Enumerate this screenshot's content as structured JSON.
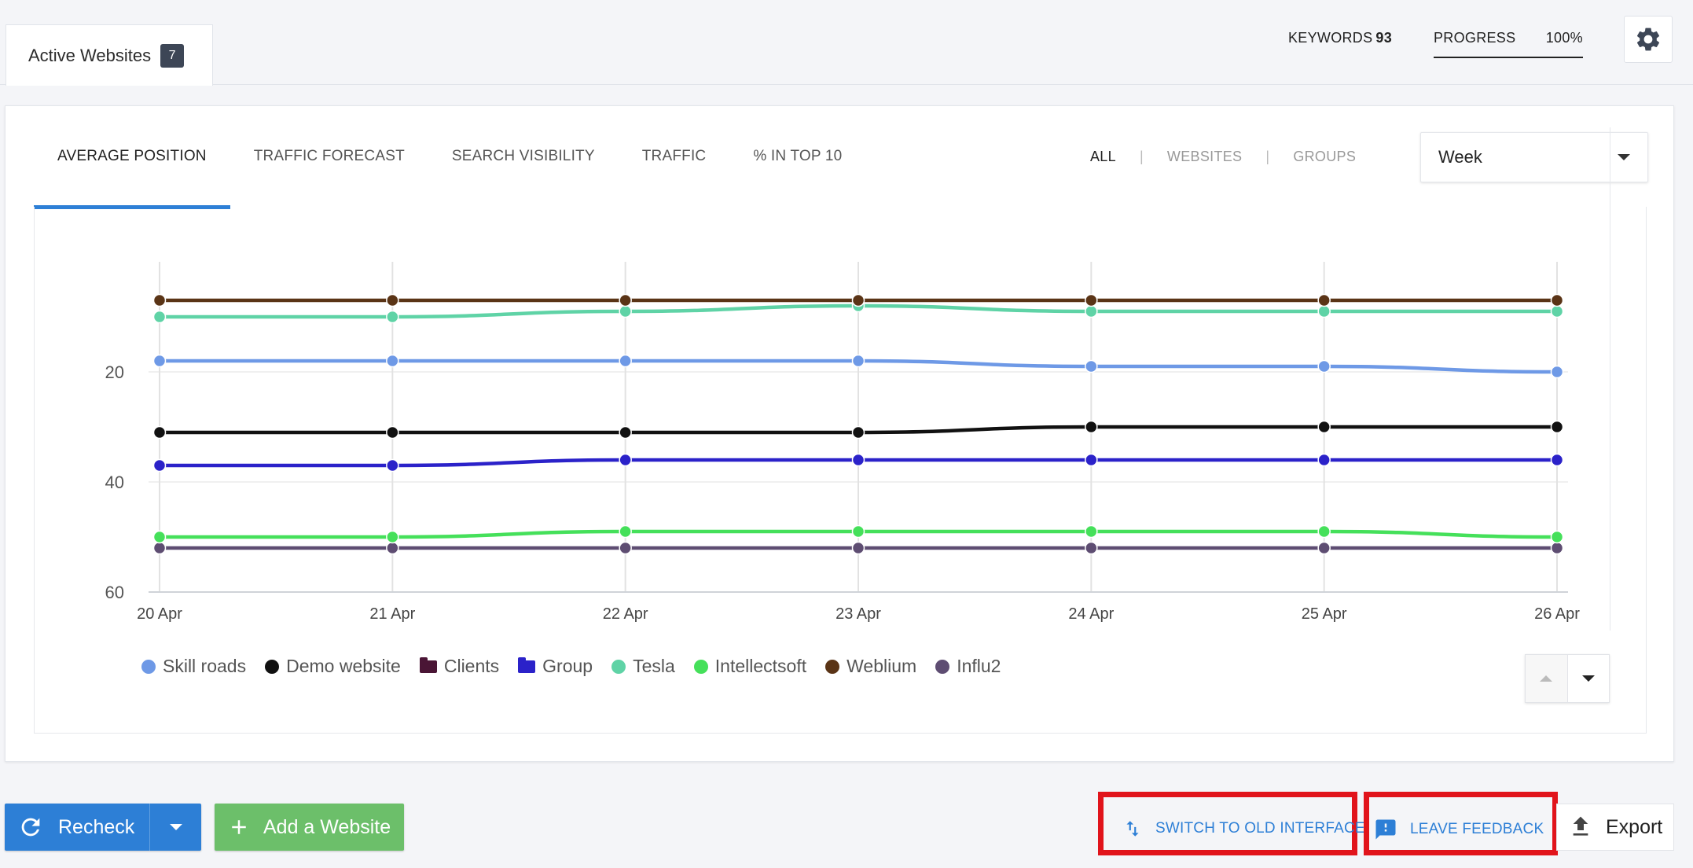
{
  "header": {
    "tab_label": "Active Websites",
    "tab_count": "7",
    "keywords_label": "KEYWORDS",
    "keywords_value": "93",
    "progress_label": "PROGRESS",
    "progress_value": "100%"
  },
  "tabs": [
    {
      "label": "AVERAGE POSITION",
      "active": true
    },
    {
      "label": "TRAFFIC FORECAST"
    },
    {
      "label": "SEARCH VISIBILITY"
    },
    {
      "label": "TRAFFIC"
    },
    {
      "label": "% IN TOP 10"
    }
  ],
  "filters": {
    "all": "ALL",
    "websites": "WEBSITES",
    "groups": "GROUPS",
    "selected": "ALL"
  },
  "period_select": {
    "value": "Week"
  },
  "chart_data": {
    "type": "line",
    "title": "",
    "xlabel": "",
    "ylabel": "",
    "y_inverted": true,
    "ylim": [
      0,
      60
    ],
    "yticks": [
      20,
      40,
      60
    ],
    "categories": [
      "20 Apr",
      "21 Apr",
      "22 Apr",
      "23 Apr",
      "24 Apr",
      "25 Apr",
      "26 Apr"
    ],
    "grid": true,
    "legend_position": "bottom-left",
    "series": [
      {
        "name": "Weblium",
        "color": "#5a3416",
        "values": [
          7,
          7,
          7,
          7,
          7,
          7,
          7
        ]
      },
      {
        "name": "Tesla",
        "color": "#5fd3a6",
        "values": [
          10,
          10,
          9,
          8,
          9,
          9,
          9
        ]
      },
      {
        "name": "Skill roads",
        "color": "#6e99e6",
        "values": [
          18,
          18,
          18,
          18,
          19,
          19,
          20
        ]
      },
      {
        "name": "Demo website",
        "color": "#111111",
        "values": [
          31,
          31,
          31,
          31,
          30,
          30,
          30
        ]
      },
      {
        "name": "Group",
        "color": "#2b22c9",
        "values": [
          37,
          37,
          36,
          36,
          36,
          36,
          36
        ]
      },
      {
        "name": "Intellectsoft",
        "color": "#45e05a",
        "values": [
          50,
          50,
          49,
          49,
          49,
          49,
          50
        ]
      },
      {
        "name": "Influ2",
        "color": "#5e4d72",
        "values": [
          52,
          52,
          52,
          52,
          52,
          52,
          52
        ]
      }
    ]
  },
  "legend": [
    {
      "label": "Skill roads",
      "color": "#6e99e6",
      "shape": "dot"
    },
    {
      "label": "Demo website",
      "color": "#111111",
      "shape": "dot"
    },
    {
      "label": "Clients",
      "color": "#4a1535",
      "shape": "folder"
    },
    {
      "label": "Group",
      "color": "#2b22c9",
      "shape": "folder"
    },
    {
      "label": "Tesla",
      "color": "#5fd3a6",
      "shape": "dot"
    },
    {
      "label": "Intellectsoft",
      "color": "#45e05a",
      "shape": "dot"
    },
    {
      "label": "Weblium",
      "color": "#5a3416",
      "shape": "dot"
    },
    {
      "label": "Influ2",
      "color": "#5e4d72",
      "shape": "dot"
    }
  ],
  "footer": {
    "recheck_label": "Recheck",
    "add_website_label": "Add a Website",
    "switch_label": "SWITCH TO OLD INTERFACE",
    "feedback_label": "LEAVE FEEDBACK",
    "export_label": "Export"
  },
  "colors": {
    "accent": "#2d7fd6",
    "green": "#6cbf6a",
    "highlight": "#e1141b"
  }
}
